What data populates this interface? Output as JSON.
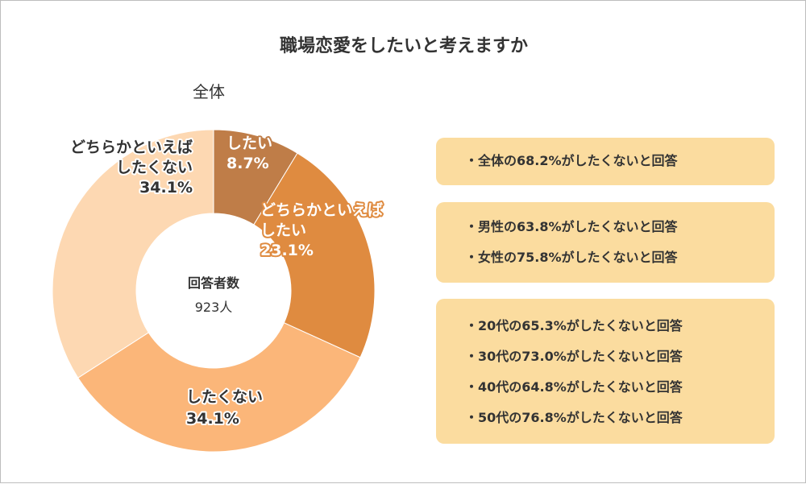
{
  "title": "職場恋愛をしたいと考えますか",
  "subtitle": "全体",
  "center": {
    "label": "回答者数",
    "value": "923人"
  },
  "chart_data": {
    "type": "pie",
    "title": "職場恋愛をしたいと考えますか",
    "subtitle": "全体",
    "unit": "%",
    "slices": [
      {
        "label": "したい",
        "value": 8.7,
        "display": "8.7%",
        "color": "#bf7d48"
      },
      {
        "label": "どちらかといえばしたい",
        "value": 23.1,
        "display": "23.1%",
        "color": "#df8b40"
      },
      {
        "label": "したくない",
        "value": 34.1,
        "display": "34.1%",
        "color": "#fbb679"
      },
      {
        "label": "どちらかといえばしたくない",
        "value": 34.1,
        "display": "34.1%",
        "color": "#fdd8b2"
      }
    ],
    "legend": "none"
  },
  "labels": {
    "shitai": {
      "line1": "したい",
      "line2": "8.7%"
    },
    "dochira_shitai": {
      "line1": "どちらかといえば",
      "line2": "したい",
      "line3": "23.1%"
    },
    "shitakunai": {
      "line1": "したくない",
      "line2": "34.1%"
    },
    "dochira_shitakunai": {
      "line1": "どちらかといえば",
      "line2": "したくない",
      "line3": "34.1%"
    }
  },
  "summary_boxes": [
    {
      "lines": [
        "・全体の68.2%がしたくないと回答"
      ]
    },
    {
      "lines": [
        "・男性の63.8%がしたくないと回答",
        "・女性の75.8%がしたくないと回答"
      ]
    },
    {
      "lines": [
        "・20代の65.3%がしたくないと回答",
        "・30代の73.0%がしたくないと回答",
        "・40代の64.8%がしたくないと回答",
        "・50代の76.8%がしたくないと回答"
      ]
    }
  ],
  "colors": {
    "box_background": "#fbdc9f",
    "border": "#bdbdbd"
  }
}
